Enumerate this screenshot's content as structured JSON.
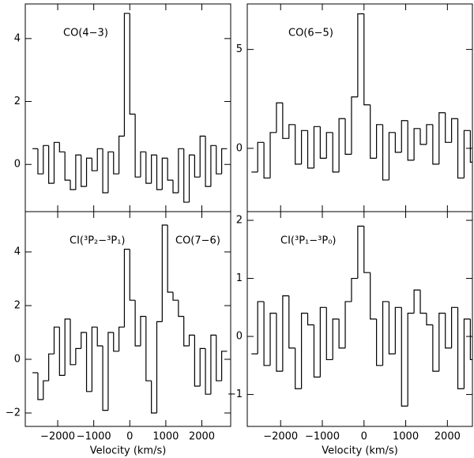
{
  "chart_data": [
    {
      "type": "histogram",
      "annotations": [
        "CO(4−3)"
      ],
      "bins": [
        -2700,
        -2550,
        -2400,
        -2250,
        -2100,
        -1950,
        -1800,
        -1650,
        -1500,
        -1350,
        -1200,
        -1050,
        -900,
        -750,
        -600,
        -450,
        -300,
        -150,
        0,
        150,
        300,
        450,
        600,
        750,
        900,
        1050,
        1200,
        1350,
        1500,
        1650,
        1800,
        1950,
        2100,
        2250,
        2400,
        2550,
        2700
      ],
      "values": [
        0.5,
        -0.3,
        0.6,
        -0.6,
        0.7,
        0.4,
        -0.5,
        -0.8,
        0.3,
        -0.7,
        0.2,
        -0.2,
        0.5,
        -0.9,
        0.4,
        -0.3,
        0.9,
        4.8,
        1.6,
        -0.4,
        0.4,
        -0.6,
        0.3,
        -0.8,
        0.2,
        -0.5,
        -0.9,
        0.5,
        -1.2,
        0.3,
        -0.4,
        0.9,
        -0.7,
        0.6,
        -0.3,
        0.5
      ],
      "ylim": [
        -1.5,
        5.1
      ],
      "yticks": [
        0,
        2,
        4
      ]
    },
    {
      "type": "histogram",
      "annotations": [
        "CI(³P₂−³P₁)",
        "CO(7−6)"
      ],
      "xlabel": "Velocity (km/s)",
      "bins": [
        -2700,
        -2550,
        -2400,
        -2250,
        -2100,
        -1950,
        -1800,
        -1650,
        -1500,
        -1350,
        -1200,
        -1050,
        -900,
        -750,
        -600,
        -450,
        -300,
        -150,
        0,
        150,
        300,
        450,
        600,
        750,
        900,
        1050,
        1200,
        1350,
        1500,
        1650,
        1800,
        1950,
        2100,
        2250,
        2400,
        2550,
        2700
      ],
      "values": [
        -0.5,
        -1.5,
        -0.8,
        0.2,
        1.2,
        -0.6,
        1.5,
        -0.2,
        0.4,
        1.0,
        -1.2,
        1.2,
        0.5,
        -1.9,
        1.0,
        0.3,
        1.2,
        4.1,
        2.2,
        0.5,
        1.6,
        -0.8,
        -2.0,
        1.4,
        5.0,
        2.5,
        2.2,
        1.6,
        0.5,
        0.9,
        -1.0,
        0.4,
        -1.3,
        0.9,
        -0.8,
        0.3
      ],
      "xlim": [
        -2900,
        2800
      ],
      "ylim": [
        -2.5,
        5.5
      ],
      "xticks": [
        {
          "value": -2000,
          "label": "−2000"
        },
        {
          "value": -1000,
          "label": "−1000"
        },
        0,
        1000,
        2000
      ],
      "yticks": [
        {
          "value": -2,
          "label": "−2"
        },
        0,
        2,
        4
      ]
    },
    {
      "type": "histogram",
      "annotations": [
        "CO(6−5)"
      ],
      "bins": [
        -2700,
        -2550,
        -2400,
        -2250,
        -2100,
        -1950,
        -1800,
        -1650,
        -1500,
        -1350,
        -1200,
        -1050,
        -900,
        -750,
        -600,
        -450,
        -300,
        -150,
        0,
        150,
        300,
        450,
        600,
        750,
        900,
        1050,
        1200,
        1350,
        1500,
        1650,
        1800,
        1950,
        2100,
        2250,
        2400,
        2550,
        2700
      ],
      "values": [
        -1.2,
        0.3,
        -1.5,
        0.8,
        2.3,
        0.5,
        1.2,
        -0.8,
        0.9,
        -1.0,
        1.1,
        -0.5,
        0.8,
        -1.2,
        1.5,
        -0.3,
        2.6,
        6.8,
        2.2,
        -0.5,
        1.2,
        -1.6,
        0.8,
        -0.2,
        1.4,
        -0.6,
        1.0,
        0.2,
        1.2,
        -0.8,
        1.8,
        0.3,
        1.5,
        -1.5,
        0.9,
        -0.7
      ],
      "ylim": [
        -3.2,
        7.3
      ],
      "yticks": [
        0,
        5
      ]
    },
    {
      "type": "histogram",
      "annotations": [
        "CI(³P₁−³P₀)"
      ],
      "xlabel": "Velocity (km/s)",
      "bins": [
        -2700,
        -2550,
        -2400,
        -2250,
        -2100,
        -1950,
        -1800,
        -1650,
        -1500,
        -1350,
        -1200,
        -1050,
        -900,
        -750,
        -600,
        -450,
        -300,
        -150,
        0,
        150,
        300,
        450,
        600,
        750,
        900,
        1050,
        1200,
        1350,
        1500,
        1650,
        1800,
        1950,
        2100,
        2250,
        2400,
        2550,
        2700
      ],
      "values": [
        -0.3,
        0.6,
        -0.5,
        0.4,
        -0.6,
        0.7,
        -0.2,
        -0.9,
        0.4,
        0.2,
        -0.7,
        0.5,
        -0.4,
        0.3,
        -0.2,
        0.6,
        1.0,
        1.9,
        1.1,
        0.3,
        -0.5,
        0.6,
        -0.3,
        0.5,
        -1.2,
        0.4,
        0.8,
        0.4,
        0.2,
        -0.6,
        0.4,
        -0.2,
        0.5,
        -0.9,
        0.3,
        -0.4
      ],
      "xlim": [
        -2800,
        2600
      ],
      "ylim": [
        -1.55,
        2.15
      ],
      "xticks": [
        {
          "value": -2000,
          "label": "−2000"
        },
        {
          "value": -1000,
          "label": "−1000"
        },
        0,
        1000,
        2000
      ],
      "yticks": [
        {
          "value": -1,
          "label": "−1"
        },
        0,
        1,
        2
      ]
    }
  ]
}
